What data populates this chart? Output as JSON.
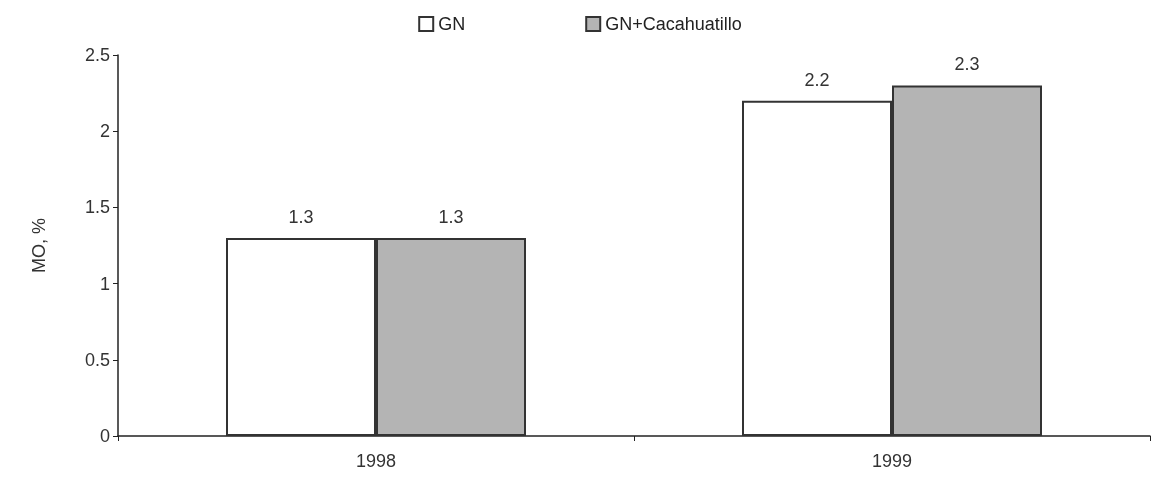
{
  "chart_data": {
    "type": "bar",
    "ylabel": "MO, %",
    "categories": [
      "1998",
      "1999"
    ],
    "series": [
      {
        "name": "GN",
        "color": "#ffffff",
        "values": [
          1.3,
          2.2
        ]
      },
      {
        "name": "GN+Cacahuatillo",
        "color": "#b4b4b4",
        "values": [
          1.3,
          2.3
        ]
      }
    ],
    "ylim": [
      0,
      2.5
    ],
    "yticks": [
      0,
      0.5,
      1,
      1.5,
      2,
      2.5
    ],
    "grid": false,
    "legend": "top",
    "data_labels": true
  }
}
